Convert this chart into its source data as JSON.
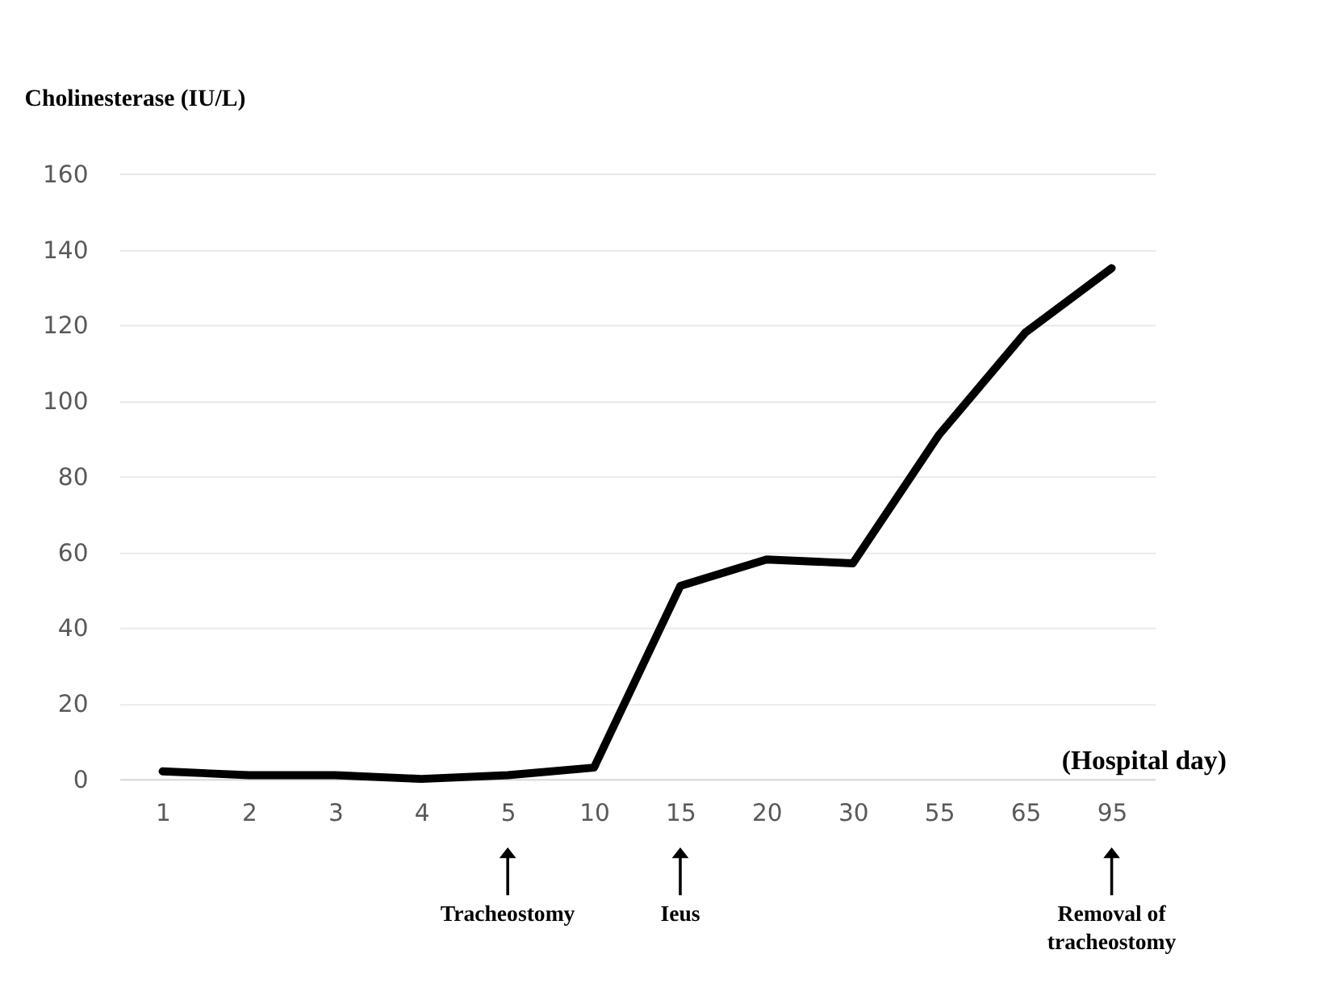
{
  "chart_data": {
    "type": "line",
    "ylabel": "Cholinesterase (IU/L)",
    "xlabel": "(Hospital day)",
    "categories": [
      "1",
      "2",
      "3",
      "4",
      "5",
      "10",
      "15",
      "20",
      "30",
      "55",
      "65",
      "95"
    ],
    "series": [
      {
        "color": "#000000",
        "values": [
          2,
          1,
          1,
          0,
          1,
          3,
          51,
          58,
          57,
          91,
          118,
          135
        ]
      }
    ],
    "ylim": [
      0,
      160
    ],
    "yticks": [
      0,
      20,
      40,
      60,
      80,
      100,
      120,
      140,
      160
    ],
    "grid": "y",
    "marker": "none",
    "line_style": "solid",
    "annotations": [
      "Tracheostomy",
      "Ieus",
      "Removal of\ntracheostomy"
    ]
  }
}
